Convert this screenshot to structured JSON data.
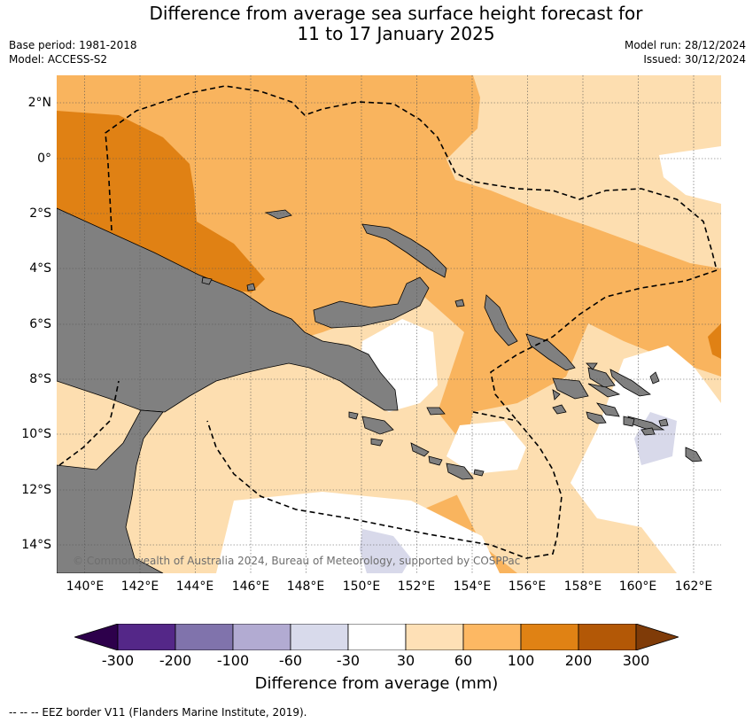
{
  "title": {
    "line1": "Difference from average sea surface height forecast for",
    "line2": "11 to 17 January 2025"
  },
  "meta": {
    "base_period": "Base period: 1981-2018",
    "model": "Model: ACCESS-S2",
    "model_run": "Model run: 28/12/2024",
    "issued": "Issued: 30/12/2024"
  },
  "map": {
    "copyright": "© Commonwealth of Australia 2024, Bureau of Meteorology, supported by COSPPac",
    "lat_labels": [
      "2°N",
      "0°",
      "2°S",
      "4°S",
      "6°S",
      "8°S",
      "10°S",
      "12°S",
      "14°S"
    ],
    "lon_labels": [
      "140°E",
      "142°E",
      "144°E",
      "146°E",
      "148°E",
      "150°E",
      "152°E",
      "154°E",
      "156°E",
      "158°E",
      "160°E",
      "162°E"
    ],
    "colors": {
      "land": "#808080",
      "c_60_100": "#f9b45e",
      "c_100_200": "#e08114",
      "c_30_60": "#fddeb0",
      "c_neg60_neg30": "#d8d9ea",
      "eez_line": "#000000"
    }
  },
  "colorbar": {
    "title": "Difference from average (mm)",
    "ticks": [
      "-300",
      "-200",
      "-100",
      "-60",
      "-30",
      "30",
      "60",
      "100",
      "200",
      "300"
    ],
    "colors": [
      "#2d004b",
      "#542788",
      "#8073ac",
      "#b2abd2",
      "#d8daeb",
      "#ffffff",
      "#fee0b6",
      "#fdb863",
      "#e08214",
      "#b35806",
      "#7f3b08"
    ]
  },
  "footnote": "--  --  -- EEZ border V11 (Flanders Marine Institute, 2019)."
}
